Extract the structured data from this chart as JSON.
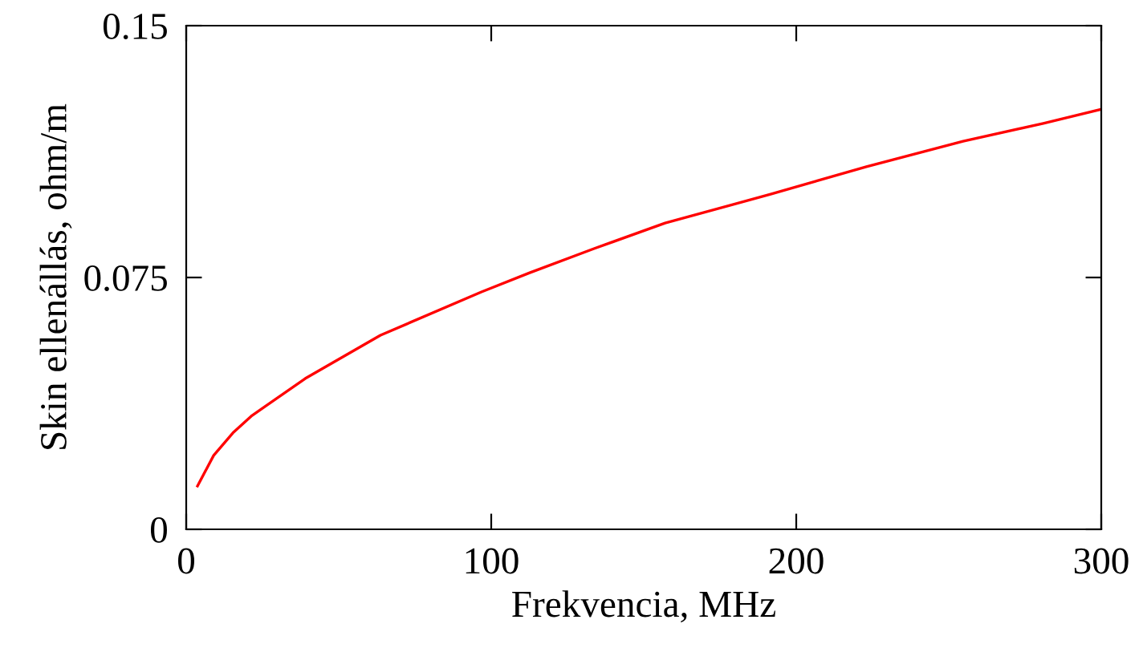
{
  "chart_data": {
    "type": "line",
    "xlabel": "Frekvencia, MHz",
    "ylabel": "Skin ellenállás, ohm/m",
    "series": [
      {
        "color": "#ff0000",
        "x": [
          3.7,
          9,
          15.3,
          21.6,
          39,
          63.7,
          96.8,
          112.6,
          133.7,
          157,
          191.6,
          223,
          254.7,
          281,
          300
        ],
        "values": [
          0.0129,
          0.022,
          0.0287,
          0.0339,
          0.0449,
          0.0578,
          0.0707,
          0.0764,
          0.0836,
          0.0912,
          0.0998,
          0.108,
          0.1156,
          0.1209,
          0.1251
        ]
      }
    ],
    "xlim": [
      0,
      300
    ],
    "ylim": [
      0,
      0.15
    ],
    "xticks": [
      0,
      100,
      200,
      300
    ],
    "yticks": [
      0,
      0.075,
      0.15
    ],
    "grid": false,
    "legend": false
  }
}
